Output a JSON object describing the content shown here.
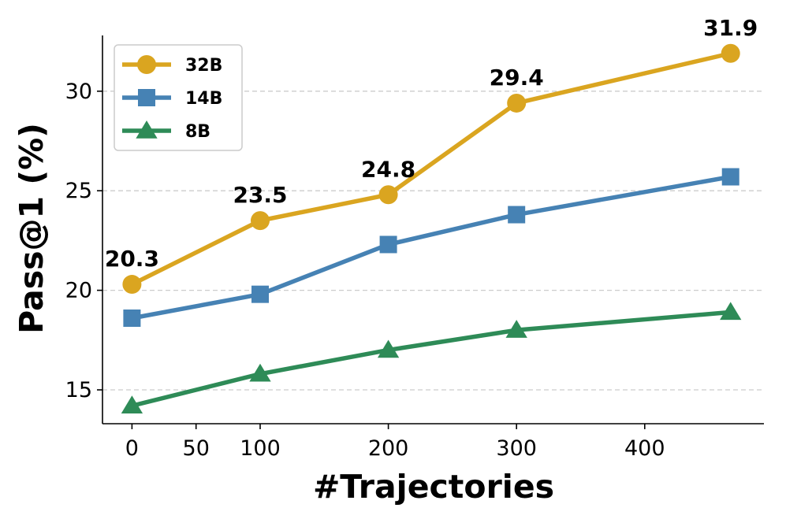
{
  "chart_data": {
    "type": "line",
    "xlabel": "#Trajectories",
    "ylabel": "Pass@1 (%)",
    "xlim": [
      -23,
      493
    ],
    "ylim": [
      13.3,
      32.8
    ],
    "xticks": [
      0,
      50,
      100,
      200,
      300,
      400
    ],
    "yticks": [
      15,
      20,
      25,
      30
    ],
    "grid": "y-dashed",
    "legend_position": "top-left",
    "x": [
      0,
      100,
      200,
      300,
      467
    ],
    "series": [
      {
        "name": "32B",
        "color": "#DAA520",
        "marker": "circle",
        "values": [
          20.3,
          23.5,
          24.8,
          29.4,
          31.9
        ]
      },
      {
        "name": "14B",
        "color": "#4682B4",
        "marker": "square",
        "values": [
          18.6,
          19.8,
          22.3,
          23.8,
          25.7
        ]
      },
      {
        "name": "8B",
        "color": "#2E8B57",
        "marker": "triangle",
        "values": [
          14.2,
          15.8,
          17.0,
          18.0,
          18.9
        ]
      }
    ],
    "annotations": [
      "20.3",
      "23.5",
      "24.8",
      "29.4",
      "31.9"
    ]
  }
}
